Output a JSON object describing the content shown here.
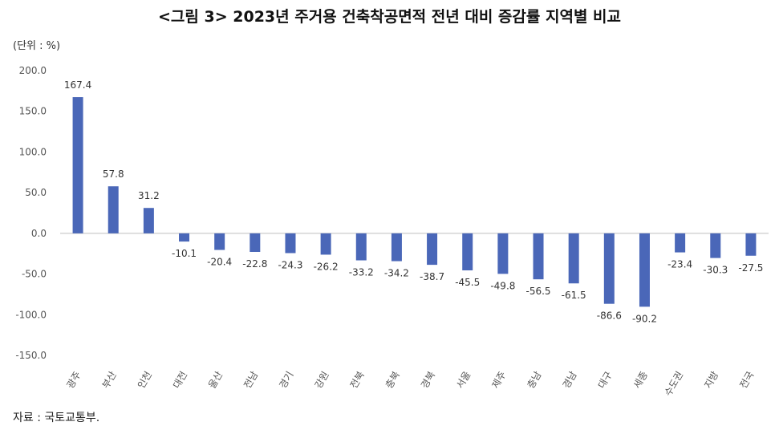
{
  "title": "<그림 3> 2023년 주거용 건축착공면적 전년 대비 증감률 지역별 비교",
  "unit": "(단위 : %)",
  "source": "자료 : 국토교통부.",
  "colors": {
    "bar": "#4a67b8",
    "axis": "#bfbfbf"
  },
  "chart_data": {
    "type": "bar",
    "categories": [
      "광주",
      "부산",
      "인천",
      "대전",
      "울산",
      "전남",
      "경기",
      "강원",
      "전북",
      "충북",
      "경북",
      "서울",
      "제주",
      "충남",
      "경남",
      "대구",
      "세종",
      "수도권",
      "지방",
      "전국"
    ],
    "values": [
      167.4,
      57.8,
      31.2,
      -10.1,
      -20.4,
      -22.8,
      -24.3,
      -26.2,
      -33.2,
      -34.2,
      -38.7,
      -45.5,
      -49.8,
      -56.5,
      -61.5,
      -86.6,
      -90.2,
      -23.4,
      -30.3,
      -27.5
    ],
    "data_labels": [
      "167.4",
      "57.8",
      "31.2",
      "-10.1",
      "-20.4",
      "-22.8",
      "-24.3",
      "-26.2",
      "-33.2",
      "-34.2",
      "-38.7",
      "-45.5",
      "-49.8",
      "-56.5",
      "-61.5",
      "-86.6",
      "-90.2",
      "-23.4",
      "-30.3",
      "-27.5"
    ],
    "ylim": [
      -150,
      200
    ],
    "yticks": [
      "200.0",
      "150.0",
      "100.0",
      "50.0",
      "0.0",
      "-50.0",
      "-100.0",
      "-150.0"
    ],
    "ytick_values": [
      200,
      150,
      100,
      50,
      0,
      -50,
      -100,
      -150
    ],
    "grid": false,
    "legend": "none"
  }
}
